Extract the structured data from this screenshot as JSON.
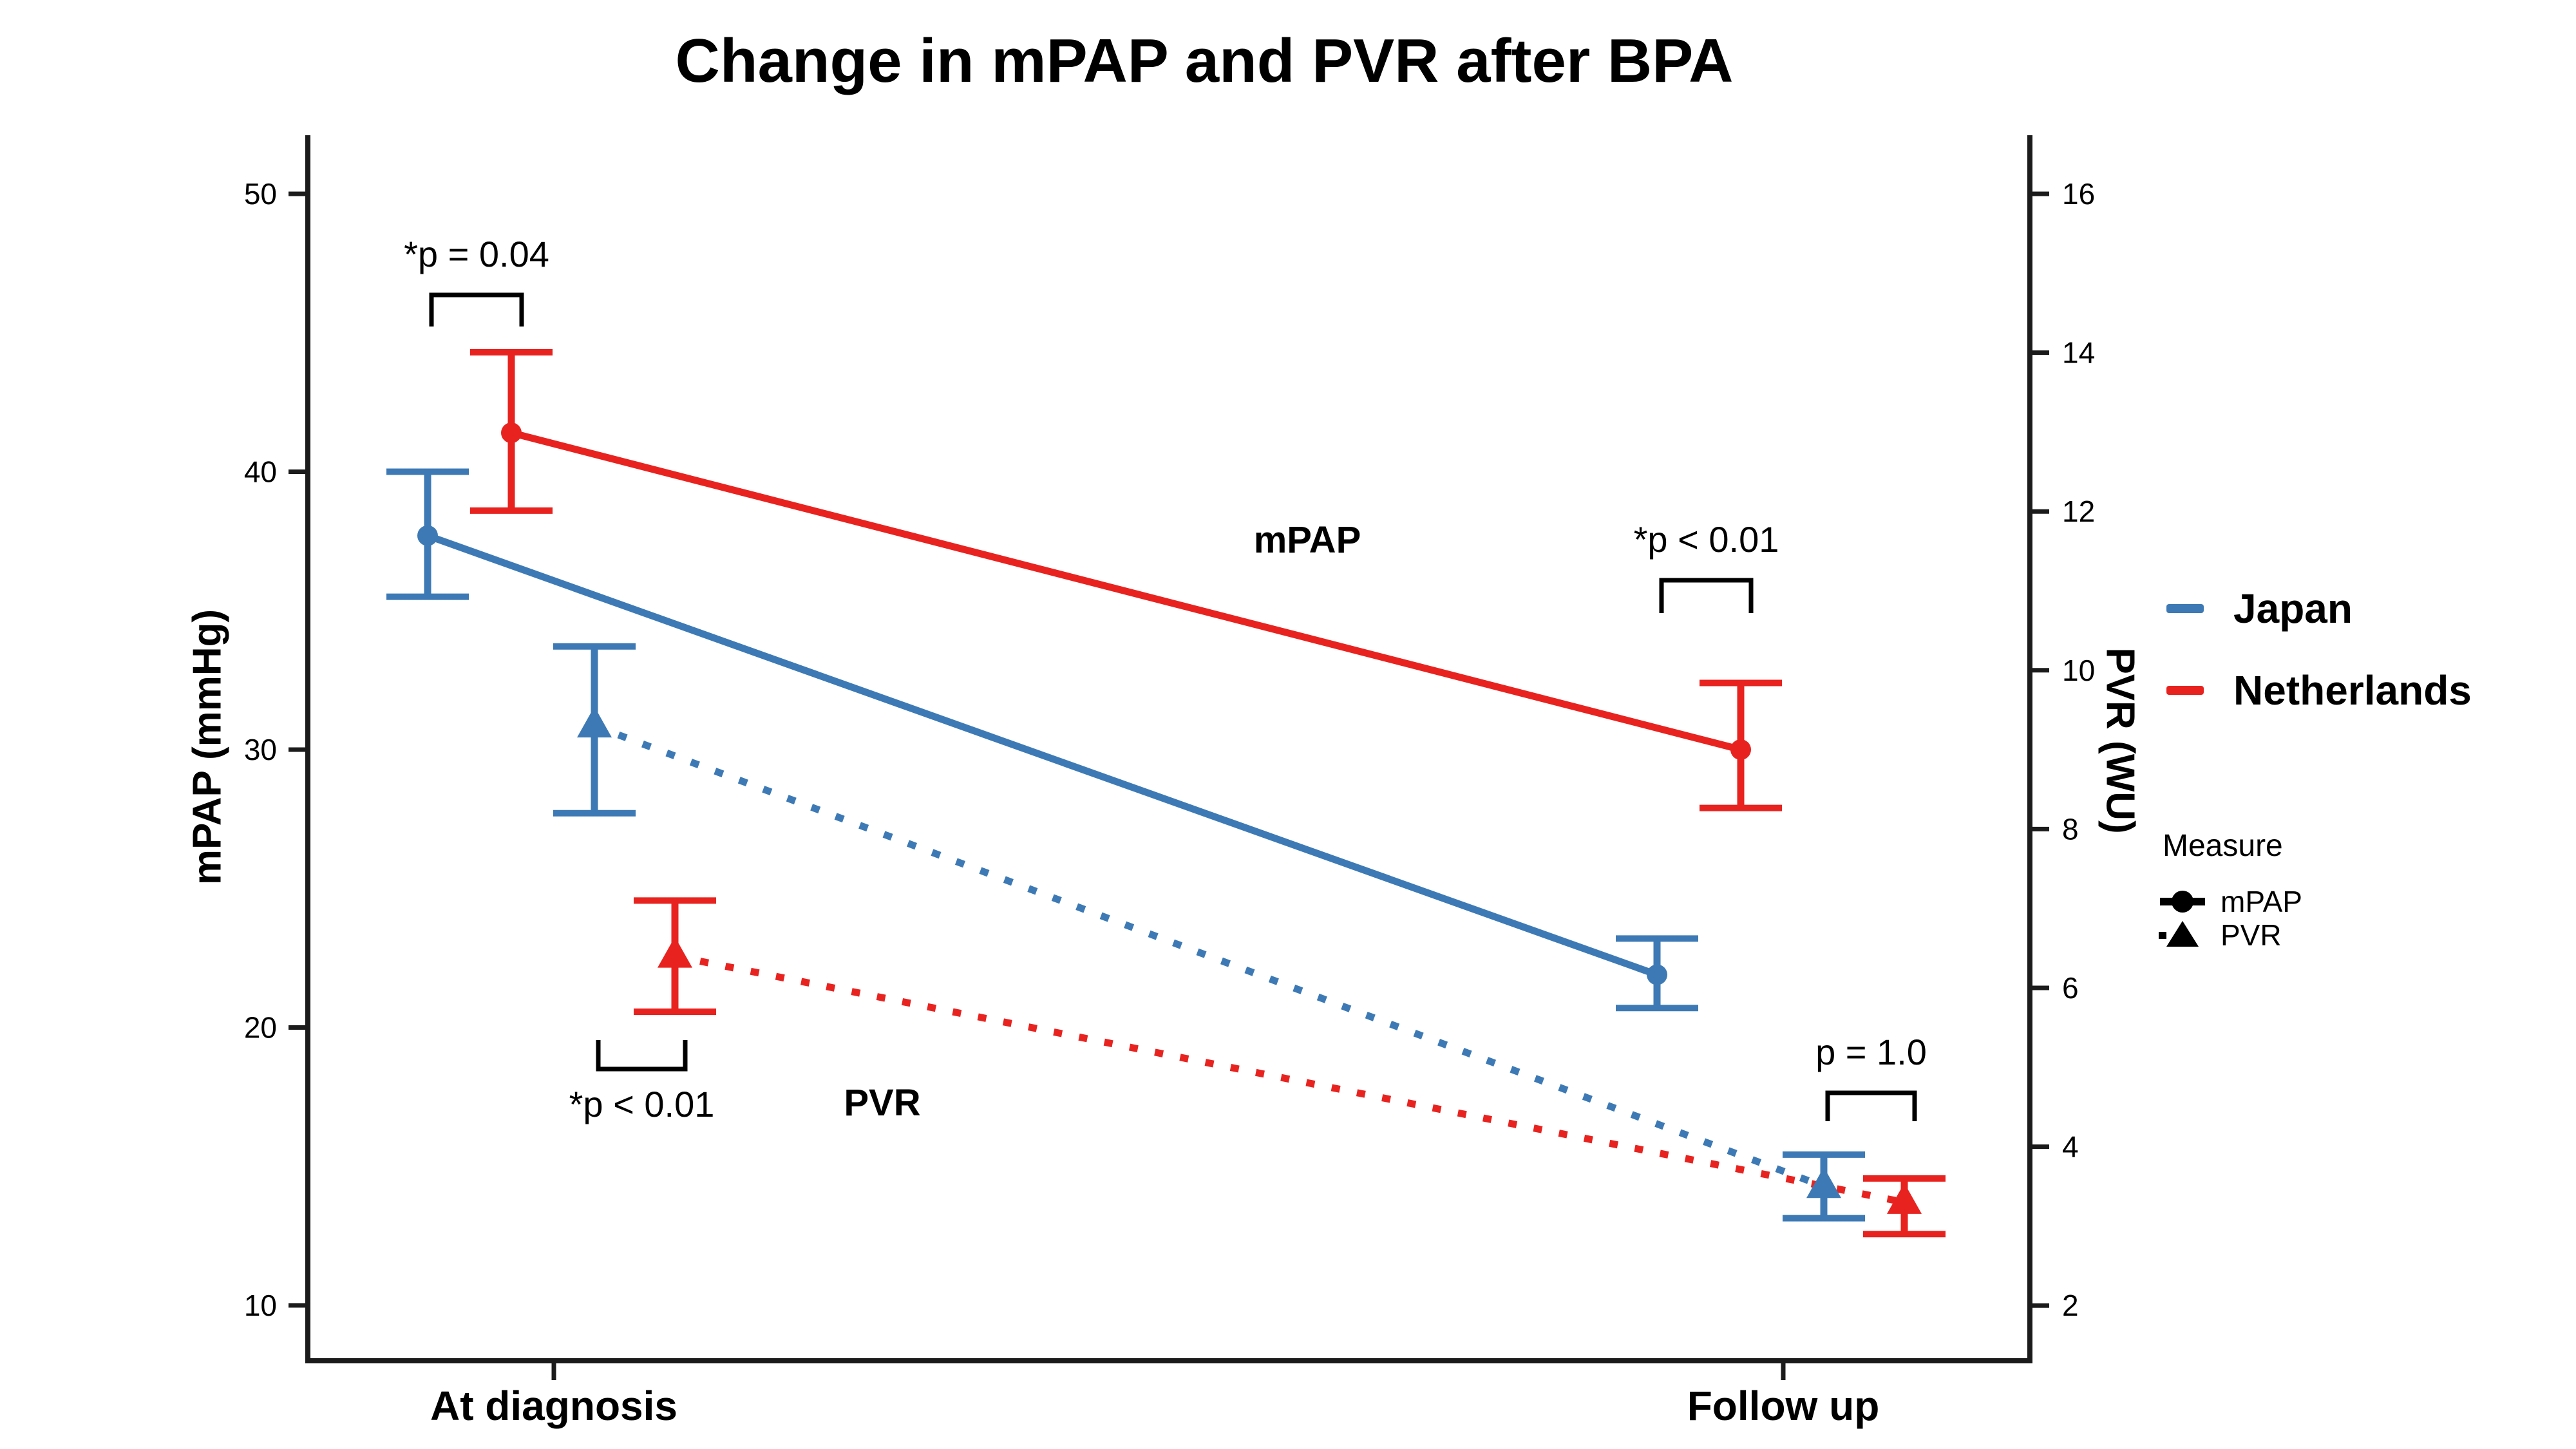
{
  "title": "Change in mPAP and PVR after BPA",
  "colors": {
    "japan": "#3D7AB5",
    "netherlands": "#E8231F",
    "axis": "#1B1B1B",
    "text": "#000000",
    "background": "#FFFFFF"
  },
  "axes": {
    "left": {
      "label": "mPAP (mmHg)"
    },
    "right": {
      "label": "PVR (WU)"
    }
  },
  "legend": {
    "countries": [
      {
        "label": "Japan",
        "color": "#3D7AB5"
      },
      {
        "label": "Netherlands",
        "color": "#E8231F"
      }
    ],
    "measure_title": "Measure",
    "measures": [
      {
        "label": "mPAP",
        "marker": "circle"
      },
      {
        "label": "PVR",
        "marker": "triangle"
      }
    ]
  },
  "chart_data": {
    "type": "line",
    "categories": [
      "At diagnosis",
      "Follow up"
    ],
    "left_axis": {
      "label": "mPAP (mmHg)",
      "range": [
        10,
        50
      ],
      "ticks": [
        50,
        40,
        30,
        20,
        10
      ]
    },
    "right_axis": {
      "label": "PVR (WU)",
      "range": [
        2,
        16
      ],
      "ticks": [
        16,
        14,
        12,
        10,
        8,
        6,
        4,
        2
      ]
    },
    "grid": false,
    "legend_position": "right",
    "series": [
      {
        "name": "Japan mPAP",
        "country": "Japan",
        "measure": "mPAP",
        "axis": "left",
        "line": "solid",
        "marker": "circle",
        "color": "#3D7AB5",
        "values": [
          37.7,
          21.9
        ],
        "ci_low": [
          35.5,
          20.7
        ],
        "ci_high": [
          40.0,
          23.2
        ]
      },
      {
        "name": "Netherlands mPAP",
        "country": "Netherlands",
        "measure": "mPAP",
        "axis": "left",
        "line": "solid",
        "marker": "circle",
        "color": "#E8231F",
        "values": [
          41.4,
          30.0
        ],
        "ci_low": [
          38.6,
          27.9
        ],
        "ci_high": [
          44.3,
          32.4
        ]
      },
      {
        "name": "Japan PVR",
        "country": "Japan",
        "measure": "PVR",
        "axis": "right",
        "line": "dotted",
        "marker": "triangle",
        "color": "#3D7AB5",
        "values": [
          9.3,
          3.5
        ],
        "ci_low": [
          8.2,
          3.1
        ],
        "ci_high": [
          10.3,
          3.9
        ]
      },
      {
        "name": "Netherlands PVR",
        "country": "Netherlands",
        "measure": "PVR",
        "axis": "right",
        "line": "dotted",
        "marker": "triangle",
        "color": "#E8231F",
        "values": [
          6.4,
          3.3
        ],
        "ci_low": [
          5.7,
          2.9
        ],
        "ci_high": [
          7.1,
          3.6
        ]
      }
    ],
    "significance": [
      {
        "label": "*p = 0.04",
        "location": "At diagnosis mPAP"
      },
      {
        "label": "*p < 0.01",
        "location": "At diagnosis PVR"
      },
      {
        "label": "*p < 0.01",
        "location": "Follow up mPAP"
      },
      {
        "label": "p = 1.0",
        "location": "Follow up PVR"
      }
    ],
    "series_labels": [
      {
        "text": "mPAP"
      },
      {
        "text": "PVR"
      }
    ]
  }
}
